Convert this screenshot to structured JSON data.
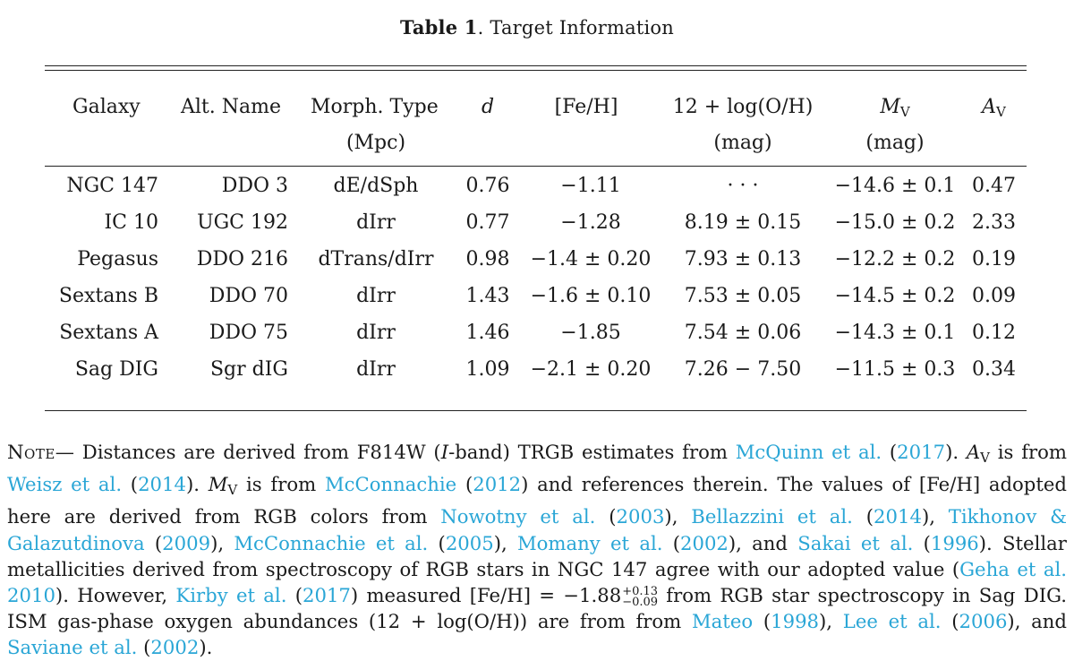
{
  "table": {
    "label": "Table 1",
    "title": "Target Information",
    "headers": {
      "galaxy": "Galaxy",
      "alt_name": "Alt. Name",
      "morph": "Morph. Type",
      "d": "d",
      "d_unit": "(Mpc)",
      "feh": "[Fe/H]",
      "oh": "12 + log(O/H)",
      "oh_unit": "(mag)",
      "mv": "M",
      "mv_sub": "V",
      "mv_unit": "(mag)",
      "av": "A",
      "av_sub": "V"
    },
    "rows": [
      {
        "galaxy": "NGC 147",
        "alt": "DDO 3",
        "morph": "dE/dSph",
        "d": "0.76",
        "feh": "−1.11",
        "oh": "· · ·",
        "mv": "−14.6 ± 0.1",
        "av": "0.47"
      },
      {
        "galaxy": "IC 10",
        "alt": "UGC 192",
        "morph": "dIrr",
        "d": "0.77",
        "feh": "−1.28",
        "oh": "8.19 ± 0.15",
        "mv": "−15.0 ± 0.2",
        "av": "2.33"
      },
      {
        "galaxy": "Pegasus",
        "alt": "DDO 216",
        "morph": "dTrans/dIrr",
        "d": "0.98",
        "feh": "−1.4 ± 0.20",
        "oh": "7.93 ± 0.13",
        "mv": "−12.2 ± 0.2",
        "av": "0.19"
      },
      {
        "galaxy": "Sextans B",
        "alt": "DDO 70",
        "morph": "dIrr",
        "d": "1.43",
        "feh": "−1.6 ± 0.10",
        "oh": "7.53 ± 0.05",
        "mv": "−14.5 ± 0.2",
        "av": "0.09"
      },
      {
        "galaxy": "Sextans A",
        "alt": "DDO 75",
        "morph": "dIrr",
        "d": "1.46",
        "feh": "−1.85",
        "oh": "7.54 ± 0.06",
        "mv": "−14.3 ± 0.1",
        "av": "0.12"
      },
      {
        "galaxy": "Sag DIG",
        "alt": "Sgr dIG",
        "morph": "dIrr",
        "d": "1.09",
        "feh": "−2.1 ± 0.20",
        "oh": "7.26 − 7.50",
        "mv": "−11.5 ± 0.3",
        "av": "0.34"
      }
    ]
  },
  "note": {
    "label": "Note",
    "t1": "— Distances are derived from F814W (",
    "t1_i": "I",
    "t1b": "-band) TRGB estimates from ",
    "c1": "McQuinn et al.",
    "t2": " (",
    "c1y": "2017",
    "t3": "). ",
    "av_a": "A",
    "av_v": "V",
    "t4": " is from ",
    "c2": "Weisz et al.",
    "t5": " (",
    "c2y": "2014",
    "t6": "). ",
    "mv_m": "M",
    "mv_v": "V",
    "t7": " is from ",
    "c3": "McConnachie",
    "t8": " (",
    "c3y": "2012",
    "t9": ") and references therein. The values of [Fe/H] adopted here are derived from RGB colors from ",
    "c4": "Nowotny et al.",
    "t10": " (",
    "c4y": "2003",
    "t11": "), ",
    "c5": "Bellazzini et al.",
    "t12": " (",
    "c5y": "2014",
    "t13": "), ",
    "c6": "Tikhonov & Galazutdinova",
    "t14": " (",
    "c6y": "2009",
    "t15": "), ",
    "c7": "McConnachie et al.",
    "t16": " (",
    "c7y": "2005",
    "t17": "), ",
    "c8": "Momany et al.",
    "t18": " (",
    "c8y": "2002",
    "t19": "), and ",
    "c9": "Sakai et al.",
    "t20": " (",
    "c9y": "1996",
    "t21": "). Stellar metallicities derived from spectroscopy of RGB stars in NGC 147 agree with our adopted value (",
    "c10": "Geha et al. 2010",
    "t22": "). However, ",
    "c11": "Kirby et al.",
    "t23": " (",
    "c11y": "2017",
    "t24": ") measured [Fe/H] = −1.88",
    "sup": "+0.13",
    "sub": "−0.09",
    "t25": " from RGB star spectroscopy in Sag DIG. ISM gas-phase oxygen abundances (12 + log(O/H)) are from from ",
    "c12": "Mateo",
    "t26": " (",
    "c12y": "1998",
    "t27": "), ",
    "c13": "Lee et al.",
    "t28": " (",
    "c13y": "2006",
    "t29": "), and ",
    "c14": "Saviane et al.",
    "t30": " (",
    "c14y": "2002",
    "t31": ")."
  }
}
